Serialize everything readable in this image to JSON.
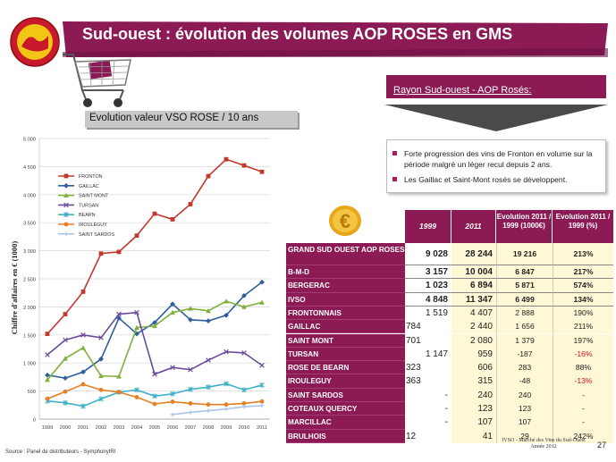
{
  "header": {
    "title": "Sud-ouest : évolution des volumes AOP ROSES en GMS",
    "logo_icon": "aop-seal-logo-icon",
    "cart_icon": "shopping-cart-icon"
  },
  "subtitle": "Evolution valeur VSO ROSE / 10 ans",
  "right_panel": {
    "rayon_label": "Rayon Sud-ouest - AOP Rosés:",
    "bullets": [
      "Forte progression des vins de Fronton en volume sur la période malgré un léger recul depuis 2 ans.",
      "Les Gaillac et Saint-Mont rosés se développent."
    ]
  },
  "table": {
    "headers": {
      "y1999": "1999",
      "y2011": "2011",
      "ev_value": "Evolution 2011 / 1999 (1000€)",
      "ev_pct": "Evolution 2011 / 1999 (%)"
    },
    "rows": [
      {
        "label": "GRAND SUD OUEST AOP ROSES",
        "v1999": "9 028",
        "v2011": "28 244",
        "ev": "19 216",
        "pct": "213%",
        "bold": true
      },
      {
        "label": "B-M-D",
        "v1999": "3 157",
        "v2011": "10 004",
        "ev": "6 847",
        "pct": "217%",
        "bold": true
      },
      {
        "label": "BERGERAC",
        "v1999": "1 023",
        "v2011": "6 894",
        "ev": "5 871",
        "pct": "574%",
        "bold": true
      },
      {
        "label": "IVSO",
        "v1999": "4 848",
        "v2011": "11 347",
        "ev": "6 499",
        "pct": "134%",
        "bold": true
      },
      {
        "label": "FRONTONNAIS",
        "v1999": "1 519",
        "v2011": "4 407",
        "ev": "2 888",
        "pct": "190%"
      },
      {
        "label": "GAILLAC",
        "v1999": "784",
        "v2011": "2 440",
        "ev": "1 656",
        "pct": "211%"
      },
      {
        "label": "SAINT MONT",
        "v1999": "701",
        "v2011": "2 080",
        "ev": "1 379",
        "pct": "197%"
      },
      {
        "label": "TURSAN",
        "v1999": "1 147",
        "v2011": "959",
        "ev": "-187",
        "pct": "-16%",
        "neg": true
      },
      {
        "label": "ROSE DE BEARN",
        "v1999": "323",
        "v2011": "606",
        "ev": "283",
        "pct": "88%"
      },
      {
        "label": "IROULEGUY",
        "v1999": "363",
        "v2011": "315",
        "ev": "-48",
        "pct": "-13%",
        "neg": true
      },
      {
        "label": "SAINT SARDOS",
        "v1999": "-",
        "v2011": "240",
        "ev": "240",
        "pct": "-"
      },
      {
        "label": "COTEAUX QUERCY",
        "v1999": "-",
        "v2011": "123",
        "ev": "123",
        "pct": "-"
      },
      {
        "label": "MARCILLAC",
        "v1999": "-",
        "v2011": "107",
        "ev": "107",
        "pct": "-"
      },
      {
        "label": "BRULHOIS",
        "v1999": "12",
        "v2011": "41",
        "ev": "29",
        "pct": "242%"
      }
    ]
  },
  "footer": {
    "note_line1": "IVSO - Marché des Vins du Sud-Ouest",
    "note_line2": "Année 2012",
    "page": "27",
    "source": "Source : Panel de distributeurs - SymphonyIRI"
  },
  "colors": {
    "brand": "#8b1a55",
    "highlight": "#fff8d6",
    "negative": "#d0102e"
  },
  "chart_data": {
    "type": "line",
    "ylabel": "Chiffre d'affaires en € (1000)",
    "ylim": [
      0,
      5000
    ],
    "yticks": [
      "0",
      "500",
      "1 000",
      "1 500",
      "2 000",
      "2 500",
      "3 000",
      "3 500",
      "4 000",
      "4 500",
      "5 000"
    ],
    "x": [
      "1999",
      "2000",
      "2001",
      "2002",
      "2003",
      "2004",
      "2005",
      "2006",
      "2007",
      "2008",
      "2009",
      "2010",
      "2011"
    ],
    "grid": true,
    "legend_position": "upper-left-inside",
    "series": [
      {
        "name": "FRONTON",
        "color": "#c0392b",
        "marker": "square",
        "values": [
          1519,
          1870,
          2270,
          2950,
          2980,
          3270,
          3660,
          3560,
          3830,
          4330,
          4630,
          4520,
          4407
        ]
      },
      {
        "name": "GAILLAC",
        "color": "#2e5f9e",
        "marker": "diamond",
        "values": [
          784,
          730,
          840,
          1070,
          1800,
          1520,
          1720,
          2050,
          1770,
          1750,
          1850,
          2200,
          2440
        ]
      },
      {
        "name": "SAINT MONT",
        "color": "#7fb03a",
        "marker": "triangle",
        "values": [
          701,
          1080,
          1270,
          770,
          760,
          1630,
          1660,
          1900,
          1970,
          1930,
          2100,
          2000,
          2080
        ]
      },
      {
        "name": "TURSAN",
        "color": "#6b4a9a",
        "marker": "x",
        "values": [
          1147,
          1410,
          1500,
          1450,
          1870,
          1900,
          800,
          920,
          880,
          1050,
          1200,
          1180,
          959
        ]
      },
      {
        "name": "BEARN",
        "color": "#3fb0c8",
        "marker": "star",
        "values": [
          323,
          290,
          230,
          360,
          480,
          520,
          410,
          450,
          530,
          570,
          630,
          520,
          606
        ]
      },
      {
        "name": "IROULEGUY",
        "color": "#e67e22",
        "marker": "circle",
        "values": [
          363,
          490,
          620,
          520,
          480,
          390,
          270,
          310,
          280,
          260,
          260,
          280,
          315
        ]
      },
      {
        "name": "SAINT SARDOS",
        "color": "#a9c6e8",
        "marker": "plus",
        "values": [
          null,
          null,
          null,
          null,
          null,
          null,
          null,
          80,
          120,
          150,
          180,
          220,
          240
        ]
      }
    ]
  }
}
